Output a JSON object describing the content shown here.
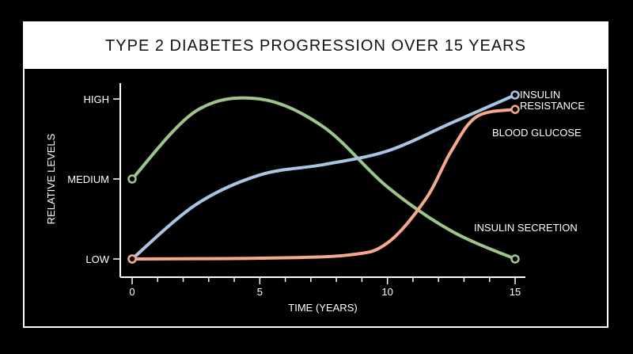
{
  "chart_data": {
    "type": "line",
    "title": "TYPE 2 DIABETES PROGRESSION OVER 15 YEARS",
    "xlabel": "TIME (YEARS)",
    "ylabel": "RELATIVE LEVELS",
    "xlim": [
      0,
      15
    ],
    "ylim": [
      0,
      2
    ],
    "x_ticks": [
      0,
      5,
      10,
      15
    ],
    "x_tick_labels": [
      "0",
      "5",
      "10",
      "15"
    ],
    "x_minor_step": 1,
    "y_ticks": [
      0,
      1,
      2
    ],
    "y_tick_labels": [
      "LOW",
      "MEDIUM",
      "HIGH"
    ],
    "grid": false,
    "legend": "none",
    "series": [
      {
        "name": "INSULIN SECRETION",
        "color": "#9ec48a",
        "x": [
          0,
          2.5,
          5,
          7.5,
          10,
          12.5,
          15
        ],
        "y": [
          1.0,
          1.85,
          2.0,
          1.65,
          0.9,
          0.35,
          0.0
        ],
        "start_marker": true,
        "end_marker": true
      },
      {
        "name": "INSULIN RESISTANCE",
        "color": "#a9c5e2",
        "x": [
          0,
          2.5,
          5,
          7.5,
          10,
          12.5,
          15
        ],
        "y": [
          0.0,
          0.68,
          1.05,
          1.18,
          1.35,
          1.7,
          2.05
        ],
        "start_marker": true,
        "end_marker": true
      },
      {
        "name": "BLOOD GLUCOSE",
        "color": "#f3a98c",
        "x": [
          0,
          5,
          8.5,
          10,
          11.5,
          12.5,
          13.5,
          15
        ],
        "y": [
          0.0,
          0.01,
          0.05,
          0.2,
          0.75,
          1.35,
          1.78,
          1.87
        ],
        "start_marker": true,
        "end_marker": true
      }
    ],
    "annotations": [
      {
        "series": 1,
        "lines": [
          "INSULIN",
          "RESISTANCE"
        ]
      },
      {
        "series": 2,
        "lines": [
          "BLOOD GLUCOSE"
        ]
      },
      {
        "series": 0,
        "lines": [
          "INSULIN SECRETION"
        ]
      }
    ]
  }
}
